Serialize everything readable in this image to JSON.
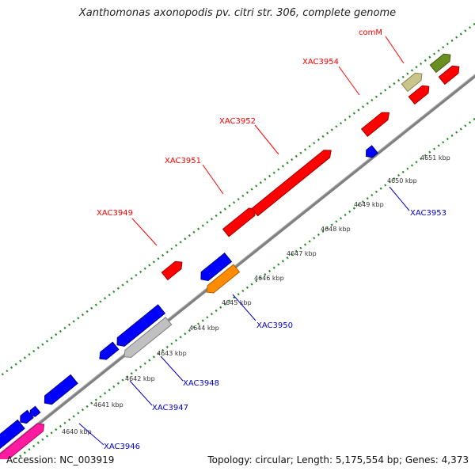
{
  "title": "Xanthomonas axonopodis pv. citri str. 306, complete genome",
  "footer": {
    "accession": "Accession: NC_003919",
    "summary": "Topology: circular; Length: 5,175,554 bp; Genes: 4,373"
  },
  "colors": {
    "forward_gene": "#ff0000",
    "reverse_gene": "#0000ff",
    "pseudo_gene": "#c0c0c0",
    "highlight_gene": "#ff8c00",
    "rna_gene": "#ff1aa0",
    "olive_gene": "#6b8e23",
    "khaki_gene": "#c8c48a",
    "backbone": "#808080",
    "gc_ticks": "#228b22"
  },
  "position_ticks": [
    "4640 kbp",
    "4641 kbp",
    "4642 kbp",
    "4643 kbp",
    "4644 kbp",
    "4645 kbp",
    "4646 kbp",
    "4647 kbp",
    "4648 kbp",
    "4649 kbp",
    "4650 kbp",
    "4651 kbp"
  ],
  "gene_labels_forward": [
    "XAC3949",
    "XAC3951",
    "XAC3952",
    "XAC3954",
    "comM"
  ],
  "gene_labels_reverse": [
    "XAC3946",
    "XAC3947",
    "XAC3948",
    "XAC3950",
    "XAC3953"
  ]
}
